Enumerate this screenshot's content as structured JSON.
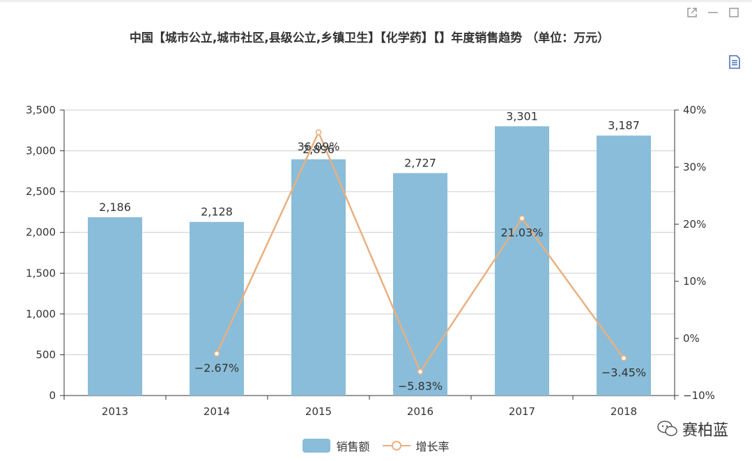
{
  "title": "中国【城市公立,城市社区,县级公立,乡镇卫生】【化学药】【】年度销售趋势 （单位：万元）",
  "watermark": "赛柏蓝",
  "colors": {
    "bar": "#8abdd9",
    "line": "#e8b07f",
    "grid": "#cccccc",
    "axis": "#333333"
  },
  "toolbar": {
    "icons": [
      "share-icon",
      "minimize-icon",
      "maximize-icon",
      "data-view-icon"
    ]
  },
  "legend": {
    "bar_label": "销售额",
    "line_label": "增长率"
  },
  "chart_data": {
    "type": "bar",
    "categories": [
      "2013",
      "2014",
      "2015",
      "2016",
      "2017",
      "2018"
    ],
    "series": [
      {
        "name": "销售额",
        "type": "bar",
        "axis": "left",
        "values": [
          2186,
          2128,
          2896,
          2727,
          3301,
          3187
        ],
        "labels": [
          "2,186",
          "2,128",
          "2,896",
          "2,727",
          "3,301",
          "3,187"
        ]
      },
      {
        "name": "增长率",
        "type": "line",
        "axis": "right",
        "values": [
          null,
          -2.67,
          36.09,
          -5.83,
          21.03,
          -3.45
        ],
        "labels": [
          "",
          "−2.67%",
          "36.09%",
          "−5.83%",
          "21.03%",
          "−3.45%"
        ]
      }
    ],
    "yleft": {
      "min": 0,
      "max": 3500,
      "ticks": [
        0,
        500,
        1000,
        1500,
        2000,
        2500,
        3000,
        3500
      ],
      "tick_labels": [
        "0",
        "500",
        "1,000",
        "1,500",
        "2,000",
        "2,500",
        "3,000",
        "3,500"
      ]
    },
    "yright": {
      "min": -10,
      "max": 40,
      "ticks": [
        -10,
        0,
        10,
        20,
        30,
        40
      ],
      "tick_labels": [
        "−10%",
        "0%",
        "10%",
        "20%",
        "30%",
        "40%"
      ]
    },
    "grid": true,
    "legend_position": "bottom"
  }
}
